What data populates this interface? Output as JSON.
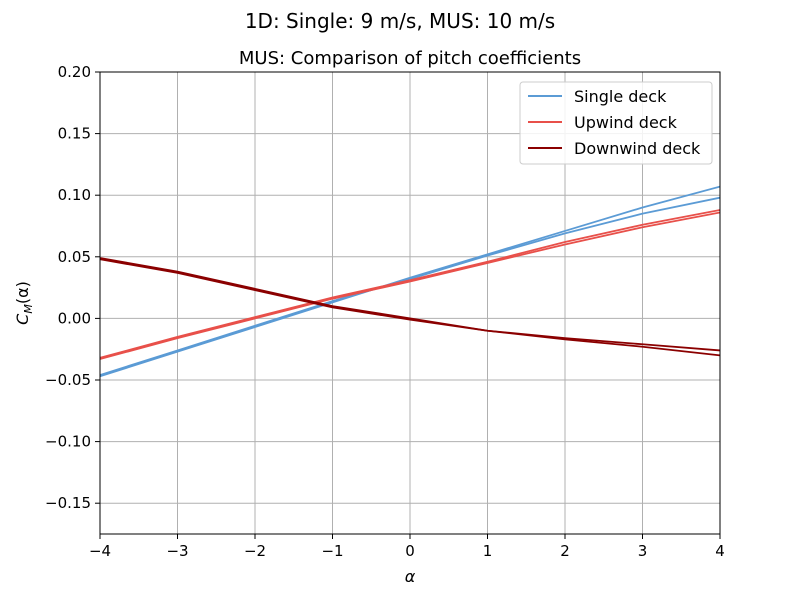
{
  "figure": {
    "suptitle": "1D: Single: 9 m/s, MUS: 10 m/s"
  },
  "chart_data": {
    "type": "line",
    "title": "MUS: Comparison of pitch coefficients",
    "xlabel": "α",
    "ylabel": "C_M(α)",
    "ylabel_main": "C",
    "ylabel_sub": "M",
    "ylabel_rest": "(α)",
    "xlim": [
      -4,
      4
    ],
    "ylim": [
      -0.175,
      0.2
    ],
    "xticks": [
      -4,
      -3,
      -2,
      -1,
      0,
      1,
      2,
      3,
      4
    ],
    "xtick_labels": [
      "−4",
      "−3",
      "−2",
      "−1",
      "0",
      "1",
      "2",
      "3",
      "4"
    ],
    "yticks": [
      -0.15,
      -0.1,
      -0.05,
      0.0,
      0.05,
      0.1,
      0.15,
      0.2
    ],
    "ytick_labels": [
      "−0.15",
      "−0.10",
      "−0.05",
      "0.00",
      "0.05",
      "0.10",
      "0.15",
      "0.20"
    ],
    "grid": true,
    "legend_position": "top-right",
    "series": [
      {
        "name": "Single deck",
        "color": "#5b9bd5",
        "lines": [
          {
            "x": [
              -4,
              -3,
              -2,
              -1,
              0,
              1,
              2,
              3,
              4
            ],
            "y": [
              -0.046,
              -0.026,
              -0.006,
              0.014,
              0.032,
              0.051,
              0.069,
              0.085,
              0.098
            ]
          },
          {
            "x": [
              -4,
              -3,
              -2,
              -1,
              0,
              1,
              2,
              3,
              4
            ],
            "y": [
              -0.047,
              -0.027,
              -0.007,
              0.013,
              0.033,
              0.052,
              0.071,
              0.09,
              0.107
            ]
          }
        ]
      },
      {
        "name": "Upwind deck",
        "color": "#e8504a",
        "lines": [
          {
            "x": [
              -4,
              -3,
              -2,
              -1,
              0,
              1,
              2,
              3,
              4
            ],
            "y": [
              -0.033,
              -0.016,
              0.0,
              0.016,
              0.03,
              0.045,
              0.06,
              0.074,
              0.086
            ]
          },
          {
            "x": [
              -4,
              -3,
              -2,
              -1,
              0,
              1,
              2,
              3,
              4
            ],
            "y": [
              -0.032,
              -0.015,
              0.001,
              0.017,
              0.031,
              0.046,
              0.062,
              0.076,
              0.088
            ]
          }
        ]
      },
      {
        "name": "Downwind deck",
        "color": "#8b0000",
        "lines": [
          {
            "x": [
              -4,
              -3,
              -2,
              -1,
              0,
              1,
              2,
              3,
              4
            ],
            "y": [
              0.049,
              0.038,
              0.024,
              0.01,
              0.0,
              -0.01,
              -0.016,
              -0.021,
              -0.026
            ]
          },
          {
            "x": [
              -4,
              -3,
              -2,
              -1,
              0,
              1,
              2,
              3,
              4
            ],
            "y": [
              0.048,
              0.037,
              0.023,
              0.009,
              -0.001,
              -0.01,
              -0.017,
              -0.023,
              -0.03
            ]
          }
        ]
      }
    ]
  }
}
